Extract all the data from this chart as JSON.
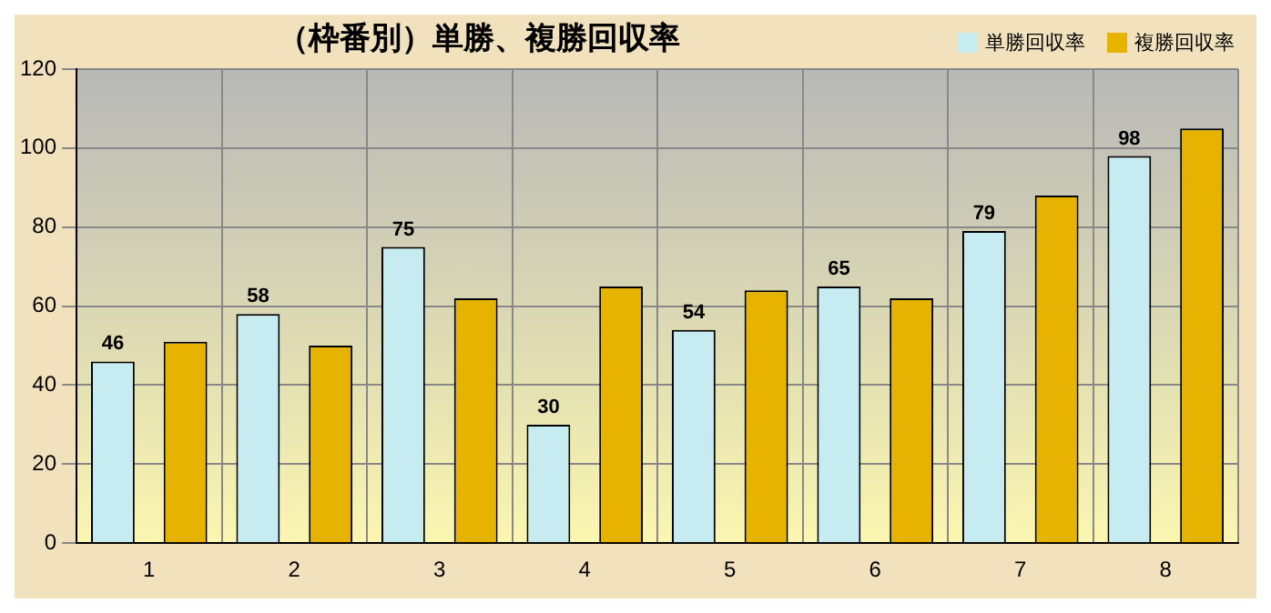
{
  "chart_data": {
    "type": "bar",
    "title": "（枠番別）単勝、複勝回収率",
    "categories": [
      "1",
      "2",
      "3",
      "4",
      "5",
      "6",
      "7",
      "8"
    ],
    "series": [
      {
        "name": "単勝回収率",
        "color": "#c6ecf2",
        "values": [
          46,
          58,
          75,
          30,
          54,
          65,
          79,
          98
        ],
        "value_labels": [
          "46",
          "58",
          "75",
          "30",
          "54",
          "65",
          "79",
          "98"
        ]
      },
      {
        "name": "複勝回収率",
        "color": "#e6b400",
        "values": [
          51,
          50,
          62,
          65,
          64,
          62,
          88,
          105
        ]
      }
    ],
    "ylim": [
      0,
      120
    ],
    "yticks": [
      0,
      20,
      40,
      60,
      80,
      100,
      120
    ],
    "grid": true,
    "legend": "top right"
  }
}
